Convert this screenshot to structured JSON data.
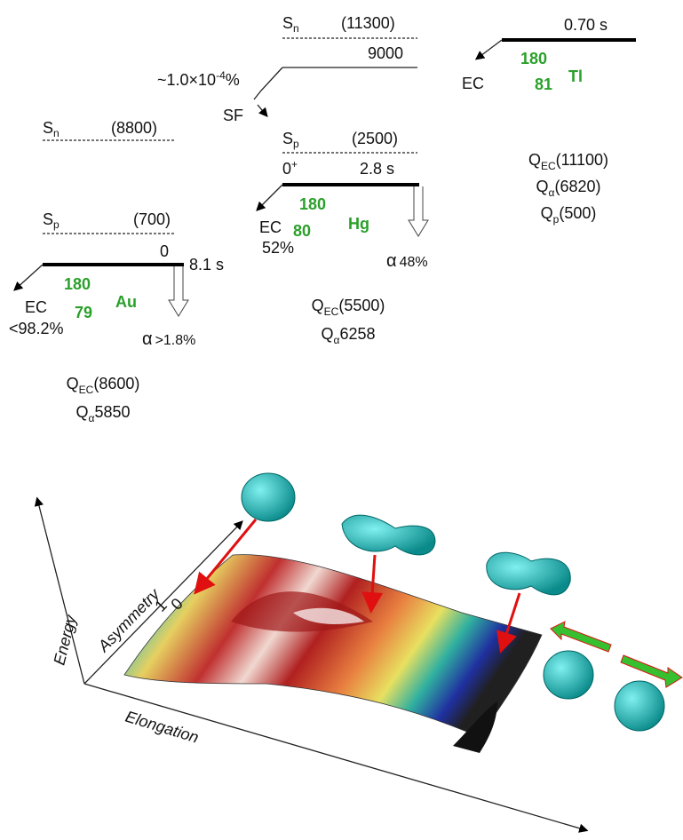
{
  "tl": {
    "sn_label": "S",
    "sn_sub": "n",
    "sn_value": "(11300)",
    "level": "9000",
    "halflife": "0.70 s",
    "decay": "EC",
    "mass": "180",
    "z": "81",
    "symbol": "Tl",
    "sf_branch": {
      "base": "~1.0×10",
      "exp": "-4",
      "unit": "%"
    },
    "sf": "SF",
    "q": [
      {
        "base": "Q",
        "sub": "EC",
        "value": "(11100)"
      },
      {
        "base": "Q",
        "sub": "α",
        "value": "(6820)"
      },
      {
        "base": "Q",
        "sub": "p",
        "value": "(500)"
      }
    ]
  },
  "hg": {
    "sp_label": "S",
    "sp_sub": "p",
    "sp_value": "(2500)",
    "spin": "0",
    "parity": "+",
    "halflife": "2.8 s",
    "decay": "EC",
    "ec_branch": "52%",
    "mass": "180",
    "z": "80",
    "symbol": "Hg",
    "alpha": "α",
    "alpha_branch": "48%",
    "q": [
      {
        "base": "Q",
        "sub": "EC",
        "value": "(5500)"
      },
      {
        "base": "Q",
        "sub": "α",
        "value": "6258"
      }
    ]
  },
  "au": {
    "sn_label": "S",
    "sn_sub": "n",
    "sn_value": "(8800)",
    "sp_label": "S",
    "sp_sub": "p",
    "sp_value": "(700)",
    "level": "0",
    "halflife": "8.1 s",
    "decay": "EC",
    "ec_branch": "<98.2%",
    "mass": "180",
    "z": "79",
    "symbol": "Au",
    "alpha": "α",
    "alpha_branch": ">1.8%",
    "q": [
      {
        "base": "Q",
        "sub": "EC",
        "value": "(8600)"
      },
      {
        "base": "Q",
        "sub": "α",
        "value": "5850"
      }
    ]
  },
  "surface": {
    "energy": "Energy",
    "asymmetry": "Asymmetry",
    "elongation": "Elongation",
    "tick1": "1",
    "tick0": "0"
  }
}
